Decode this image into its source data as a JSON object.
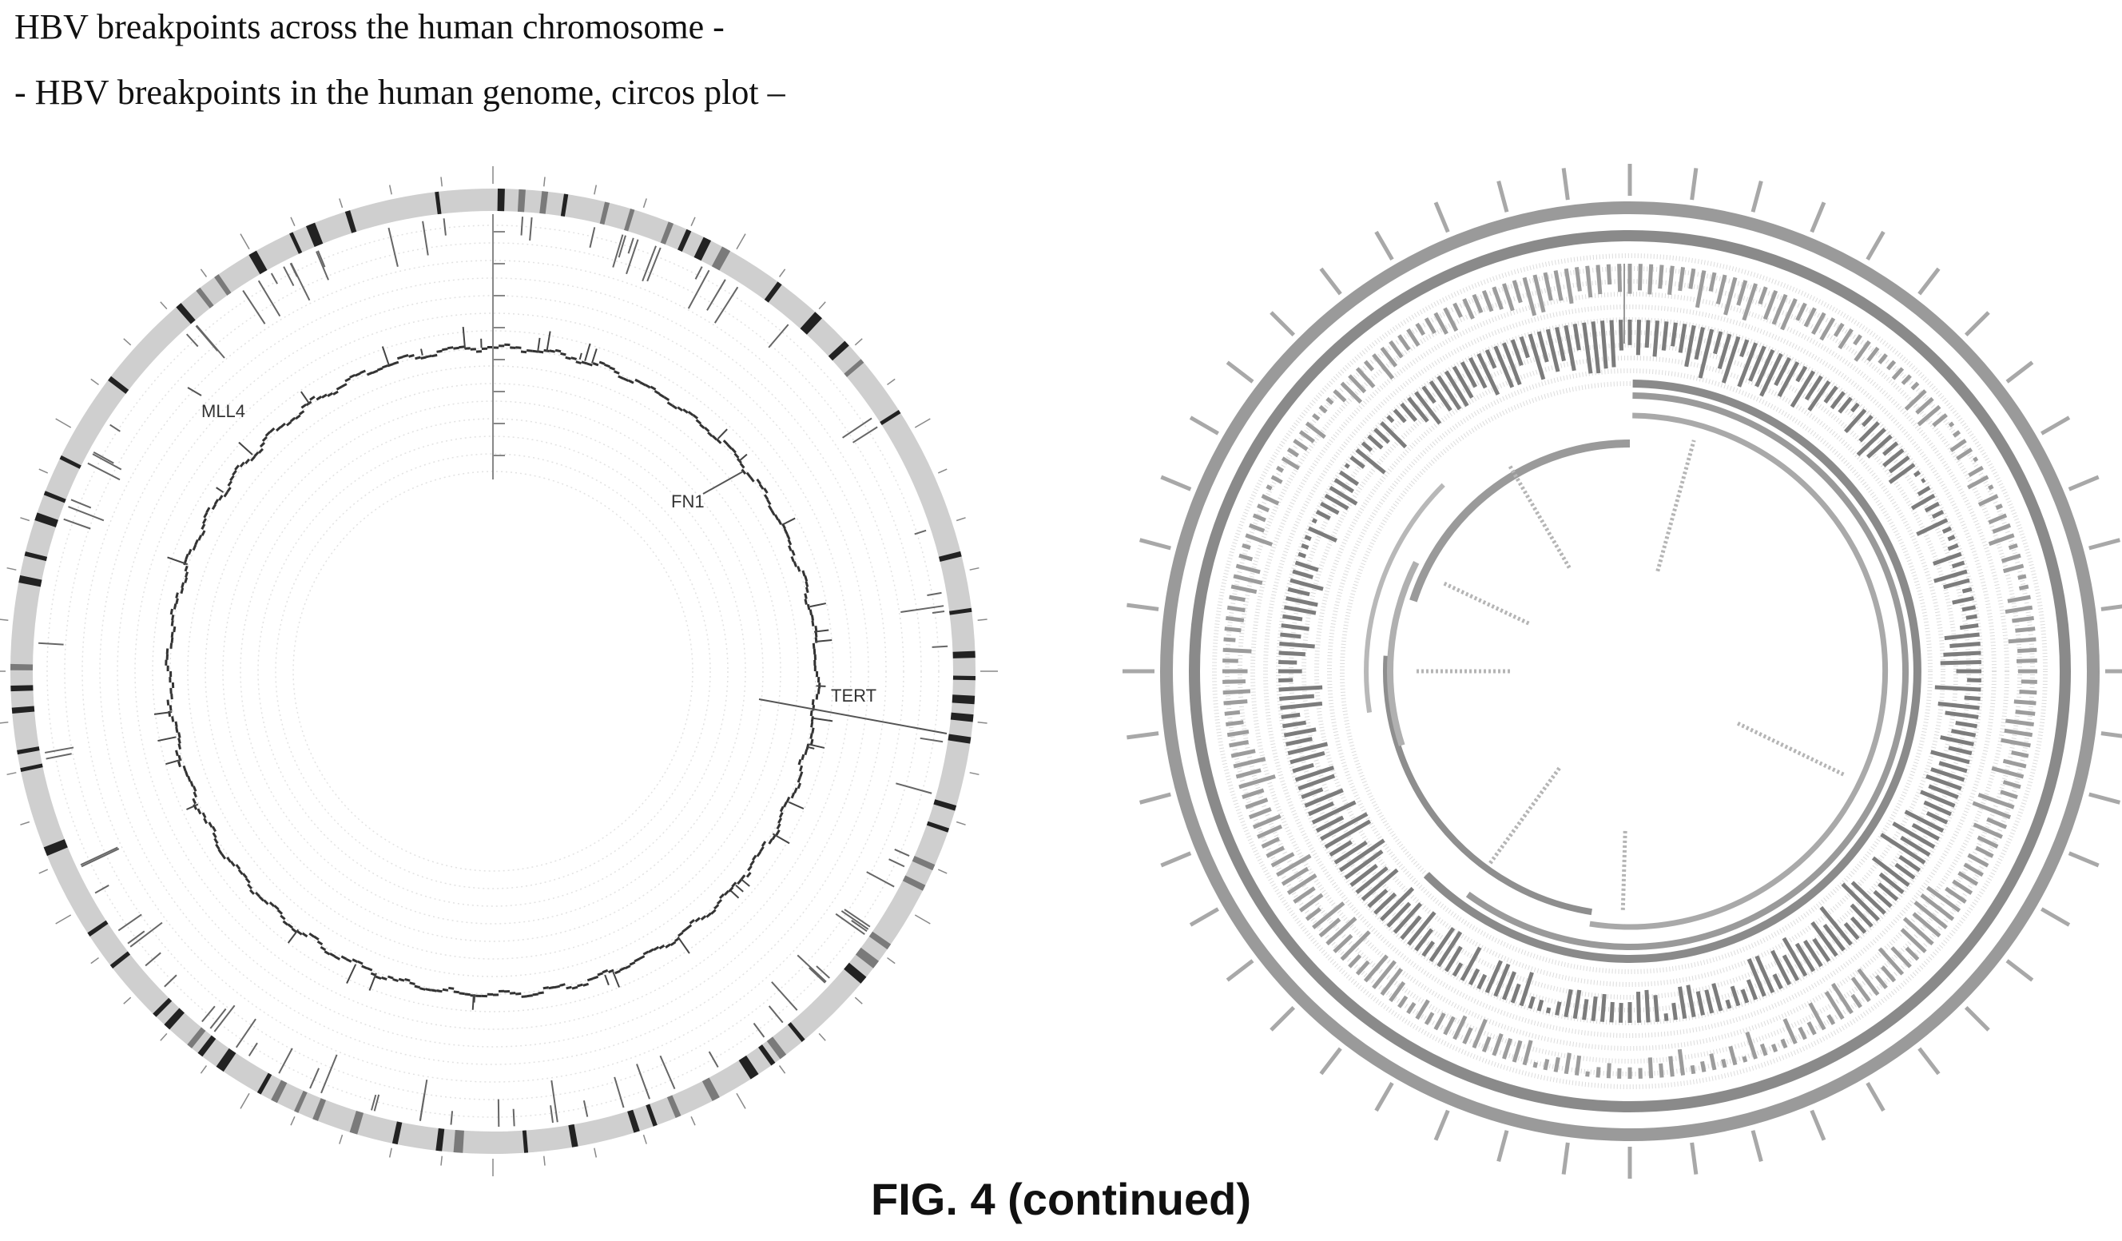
{
  "captions": {
    "left_title": "HBV breakpoints across the human chromosome -",
    "right_title": "- HBV breakpoints in the human genome, circos plot –"
  },
  "figure_label": "FIG. 4 (continued)",
  "left_plot": {
    "gene_labels": [
      "MLL4",
      "FN1",
      "TERT"
    ]
  },
  "colors": {
    "ink": "#111111",
    "track_gray": "#bfbfbf",
    "light_gray": "#d9d9d9",
    "dark_gray": "#6e6e6e"
  }
}
